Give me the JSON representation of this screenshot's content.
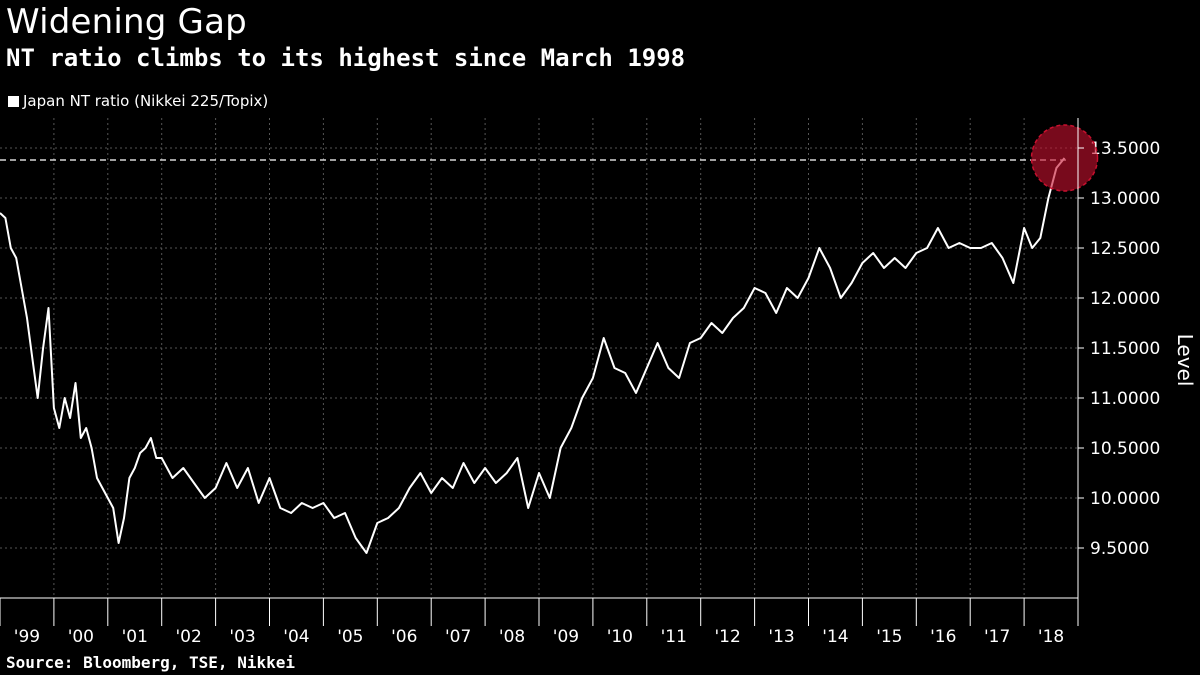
{
  "title": "Widening Gap",
  "subtitle": "NT ratio climbs to its highest since March 1998",
  "source": "Source: Bloomberg, TSE, Nikkei",
  "colors": {
    "background": "#000000",
    "line": "#ffffff",
    "highlight": "#c8102e",
    "grid": "#555555"
  },
  "chart_data": {
    "type": "line",
    "title": "Widening Gap",
    "subtitle": "NT ratio climbs to its highest since March 1998",
    "ylabel": "Level",
    "ylim": [
      9.0,
      13.8
    ],
    "y_ticks": [
      "9.5000",
      "10.0000",
      "10.5000",
      "11.0000",
      "11.5000",
      "12.0000",
      "12.5000",
      "13.0000",
      "13.5000"
    ],
    "y_tick_values": [
      9.5,
      10.0,
      10.5,
      11.0,
      11.5,
      12.0,
      12.5,
      13.0,
      13.5
    ],
    "x_tick_labels": [
      "'99",
      "'00",
      "'01",
      "'02",
      "'03",
      "'04",
      "'05",
      "'06",
      "'07",
      "'08",
      "'09",
      "'10",
      "'11",
      "'12",
      "'13",
      "'14",
      "'15",
      "'16",
      "'17",
      "'18"
    ],
    "x_tick_years": [
      1999,
      2000,
      2001,
      2002,
      2003,
      2004,
      2005,
      2006,
      2007,
      2008,
      2009,
      2010,
      2011,
      2012,
      2013,
      2014,
      2015,
      2016,
      2017,
      2018
    ],
    "xlim": [
      1999.0,
      2019.0
    ],
    "grid": true,
    "legend_position": "top-left",
    "series": [
      {
        "name": "Japan NT ratio (Nikkei 225/Topix)",
        "x": [
          1999.0,
          1999.1,
          1999.2,
          1999.3,
          1999.4,
          1999.5,
          1999.6,
          1999.7,
          1999.8,
          1999.9,
          2000.0,
          2000.1,
          2000.2,
          2000.3,
          2000.4,
          2000.5,
          2000.6,
          2000.7,
          2000.8,
          2000.9,
          2001.0,
          2001.1,
          2001.2,
          2001.3,
          2001.4,
          2001.5,
          2001.6,
          2001.7,
          2001.8,
          2001.9,
          2002.0,
          2002.2,
          2002.4,
          2002.6,
          2002.8,
          2003.0,
          2003.2,
          2003.4,
          2003.6,
          2003.8,
          2004.0,
          2004.2,
          2004.4,
          2004.6,
          2004.8,
          2005.0,
          2005.2,
          2005.4,
          2005.6,
          2005.8,
          2006.0,
          2006.2,
          2006.4,
          2006.6,
          2006.8,
          2007.0,
          2007.2,
          2007.4,
          2007.6,
          2007.8,
          2008.0,
          2008.2,
          2008.4,
          2008.6,
          2008.8,
          2009.0,
          2009.2,
          2009.4,
          2009.6,
          2009.8,
          2010.0,
          2010.2,
          2010.4,
          2010.6,
          2010.8,
          2011.0,
          2011.2,
          2011.4,
          2011.6,
          2011.8,
          2012.0,
          2012.2,
          2012.4,
          2012.6,
          2012.8,
          2013.0,
          2013.2,
          2013.4,
          2013.6,
          2013.8,
          2014.0,
          2014.2,
          2014.4,
          2014.6,
          2014.8,
          2015.0,
          2015.2,
          2015.4,
          2015.6,
          2015.8,
          2016.0,
          2016.2,
          2016.4,
          2016.6,
          2016.8,
          2017.0,
          2017.2,
          2017.4,
          2017.6,
          2017.8,
          2018.0,
          2018.15,
          2018.3,
          2018.45,
          2018.6,
          2018.75
        ],
        "y": [
          12.85,
          12.8,
          12.5,
          12.4,
          12.1,
          11.8,
          11.4,
          11.0,
          11.5,
          11.9,
          10.9,
          10.7,
          11.0,
          10.8,
          11.15,
          10.6,
          10.7,
          10.5,
          10.2,
          10.1,
          10.0,
          9.9,
          9.55,
          9.8,
          10.2,
          10.3,
          10.45,
          10.5,
          10.6,
          10.4,
          10.4,
          10.2,
          10.3,
          10.15,
          10.0,
          10.1,
          10.35,
          10.1,
          10.3,
          9.95,
          10.2,
          9.9,
          9.85,
          9.95,
          9.9,
          9.95,
          9.8,
          9.85,
          9.6,
          9.45,
          9.75,
          9.8,
          9.9,
          10.1,
          10.25,
          10.05,
          10.2,
          10.1,
          10.35,
          10.15,
          10.3,
          10.15,
          10.25,
          10.4,
          9.9,
          10.25,
          10.0,
          10.5,
          10.7,
          11.0,
          11.2,
          11.6,
          11.3,
          11.25,
          11.05,
          11.3,
          11.55,
          11.3,
          11.2,
          11.55,
          11.6,
          11.75,
          11.65,
          11.8,
          11.9,
          12.1,
          12.05,
          11.85,
          12.1,
          12.0,
          12.2,
          12.5,
          12.3,
          12.0,
          12.15,
          12.35,
          12.45,
          12.3,
          12.4,
          12.3,
          12.45,
          12.5,
          12.7,
          12.5,
          12.55,
          12.5,
          12.5,
          12.55,
          12.4,
          12.15,
          12.7,
          12.5,
          12.6,
          13.0,
          13.3,
          13.4
        ]
      }
    ],
    "reference_line": 13.38,
    "highlight_point": {
      "x": 2018.75,
      "y": 13.4
    }
  }
}
